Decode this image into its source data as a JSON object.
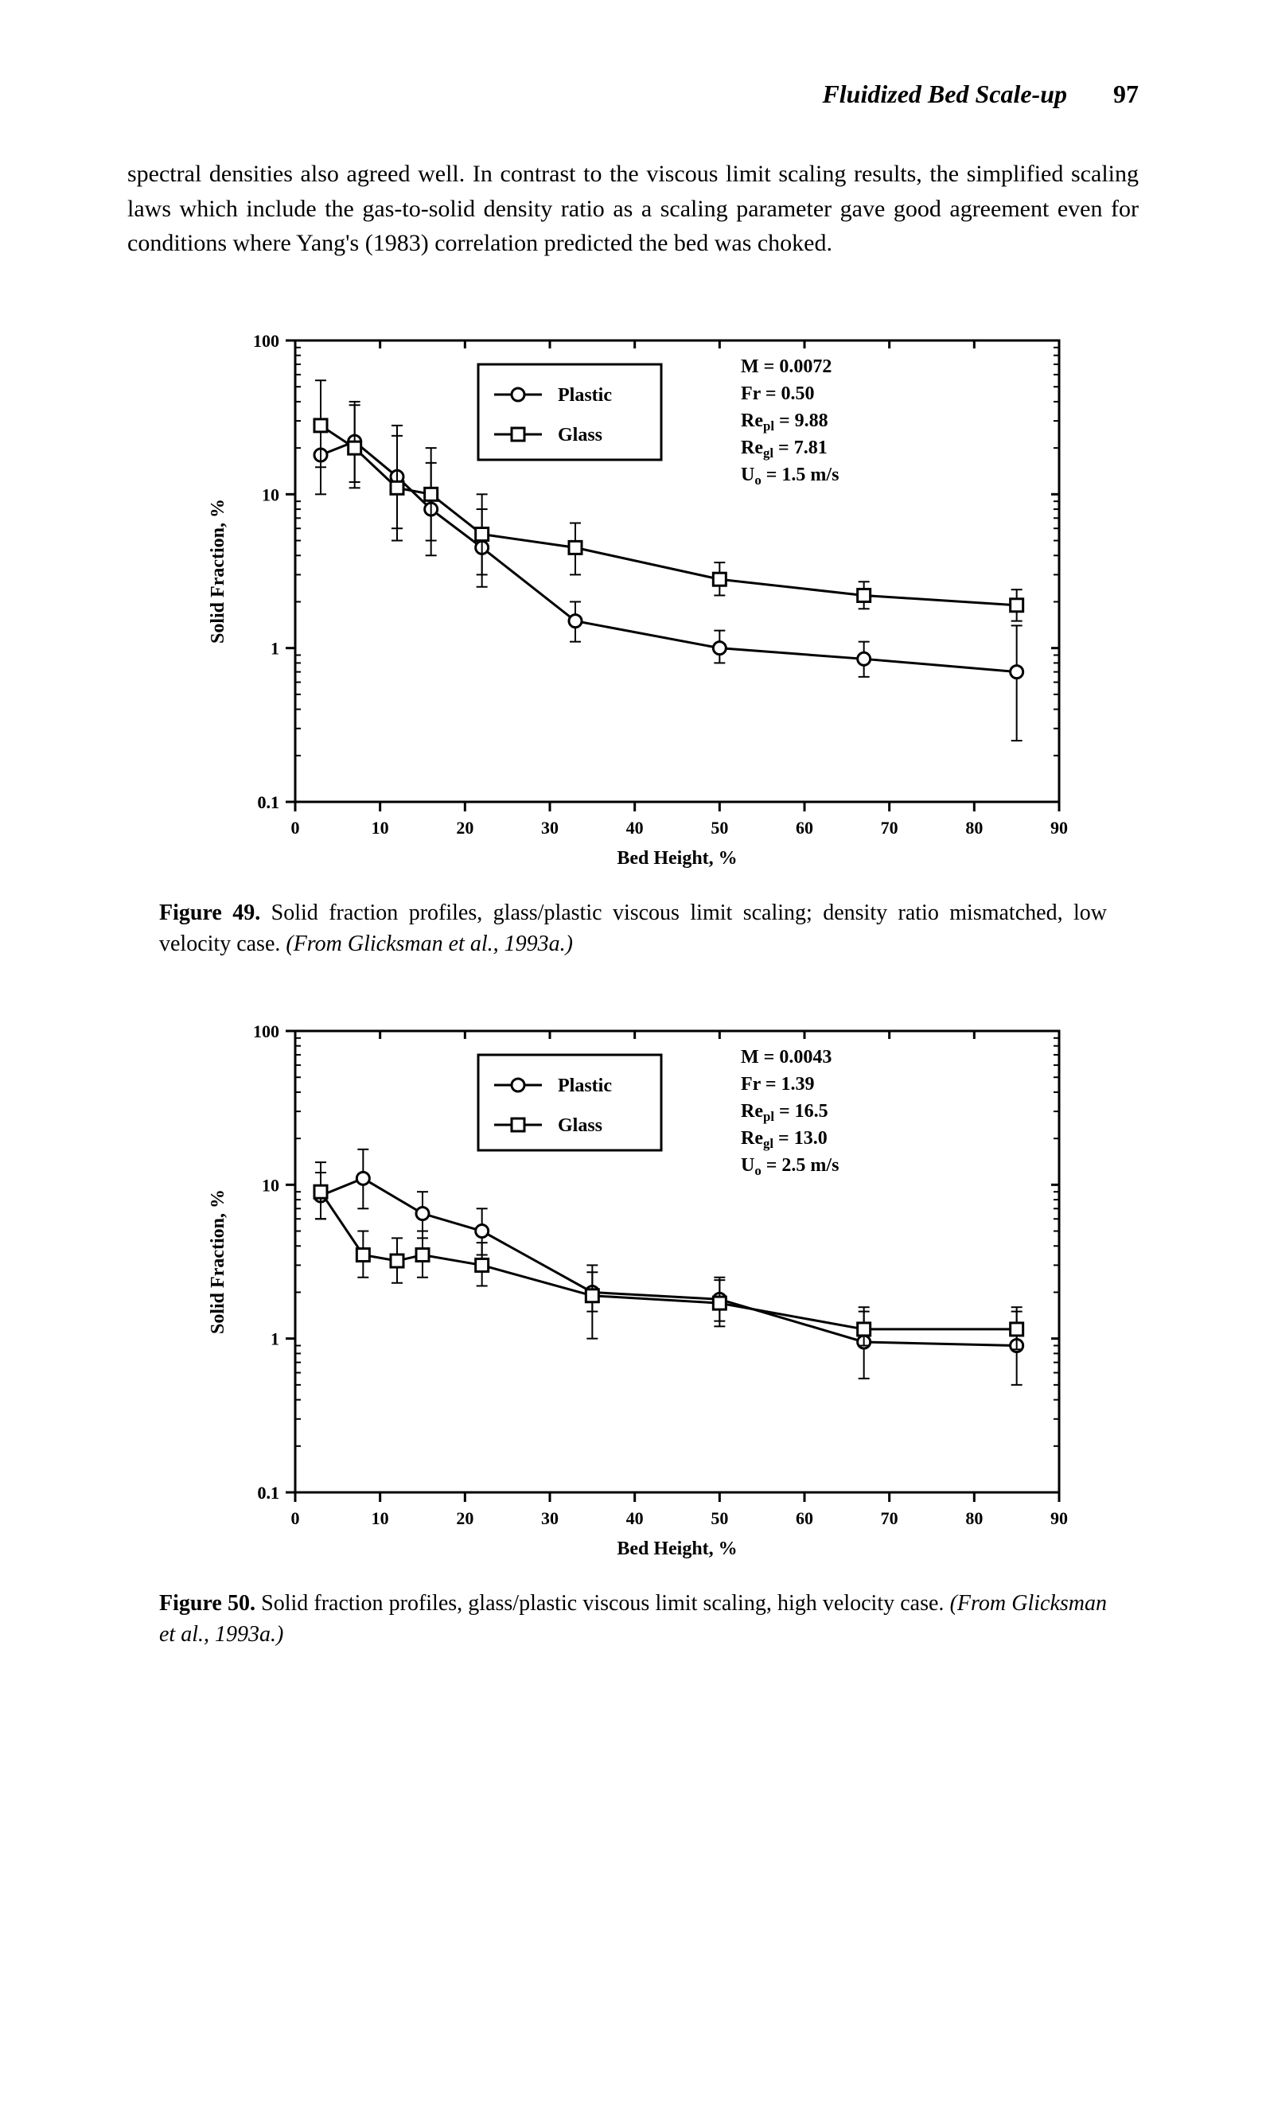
{
  "header": {
    "title": "Fluidized Bed Scale-up",
    "page": "97"
  },
  "body_paragraph": "spectral densities also agreed well. In contrast to the viscous limit scaling results, the simplified scaling laws which include the gas-to-solid density ratio as a scaling parameter gave good agreement even for conditions where Yang's (1983) correlation predicted the bed was choked.",
  "figure49": {
    "type": "scatter-line-log-y",
    "chart": {
      "xlabel": "Bed Height, %",
      "ylabel": "Solid Fraction, %",
      "xlim": [
        0,
        90
      ],
      "xticks": [
        0,
        10,
        20,
        30,
        40,
        50,
        60,
        70,
        80,
        90
      ],
      "ylim_log": [
        0.1,
        100
      ],
      "yticks_log": [
        0.1,
        1,
        10,
        100
      ],
      "grid_color": "#000000",
      "background_color": "#ffffff",
      "axis_line_width": 3,
      "series_line_width": 3,
      "marker_size": 8,
      "font_size_axis_label": 24,
      "font_size_tick": 22,
      "font_size_legend": 24,
      "font_size_params": 24
    },
    "legend": {
      "items": [
        {
          "label": "Plastic",
          "marker": "circle"
        },
        {
          "label": "Glass",
          "marker": "square"
        }
      ],
      "box_border": "#000000"
    },
    "params": {
      "lines": [
        "M = 0.0072",
        "Fr = 0.50",
        "Re_pl = 9.88",
        "Re_gl = 7.81",
        "U_o = 1.5 m/s"
      ]
    },
    "series_plastic": {
      "color": "#000000",
      "marker": "circle",
      "points": [
        {
          "x": 3,
          "y": 18,
          "err_lo": 10,
          "err_hi": 30
        },
        {
          "x": 7,
          "y": 22,
          "err_lo": 12,
          "err_hi": 40
        },
        {
          "x": 12,
          "y": 13,
          "err_lo": 6,
          "err_hi": 28
        },
        {
          "x": 16,
          "y": 8,
          "err_lo": 4,
          "err_hi": 16
        },
        {
          "x": 22,
          "y": 4.5,
          "err_lo": 2.5,
          "err_hi": 8
        },
        {
          "x": 33,
          "y": 1.5,
          "err_lo": 1.1,
          "err_hi": 2.0
        },
        {
          "x": 50,
          "y": 1.0,
          "err_lo": 0.8,
          "err_hi": 1.3
        },
        {
          "x": 67,
          "y": 0.85,
          "err_lo": 0.65,
          "err_hi": 1.1
        },
        {
          "x": 85,
          "y": 0.7,
          "err_lo": 0.25,
          "err_hi": 1.4
        }
      ]
    },
    "series_glass": {
      "color": "#000000",
      "marker": "square",
      "points": [
        {
          "x": 3,
          "y": 28,
          "err_lo": 15,
          "err_hi": 55
        },
        {
          "x": 7,
          "y": 20,
          "err_lo": 11,
          "err_hi": 38
        },
        {
          "x": 12,
          "y": 11,
          "err_lo": 5,
          "err_hi": 24
        },
        {
          "x": 16,
          "y": 10,
          "err_lo": 5,
          "err_hi": 20
        },
        {
          "x": 22,
          "y": 5.5,
          "err_lo": 3,
          "err_hi": 10
        },
        {
          "x": 33,
          "y": 4.5,
          "err_lo": 3,
          "err_hi": 6.5
        },
        {
          "x": 50,
          "y": 2.8,
          "err_lo": 2.2,
          "err_hi": 3.6
        },
        {
          "x": 67,
          "y": 2.2,
          "err_lo": 1.8,
          "err_hi": 2.7
        },
        {
          "x": 85,
          "y": 1.9,
          "err_lo": 1.5,
          "err_hi": 2.4
        }
      ]
    },
    "caption": {
      "label": "Figure 49.",
      "text": " Solid fraction profiles, glass/plastic viscous limit scaling; density ratio mismatched, low velocity case. ",
      "source": "(From Glicksman et al., 1993a.)"
    }
  },
  "figure50": {
    "type": "scatter-line-log-y",
    "chart": {
      "xlabel": "Bed Height, %",
      "ylabel": "Solid Fraction, %",
      "xlim": [
        0,
        90
      ],
      "xticks": [
        0,
        10,
        20,
        30,
        40,
        50,
        60,
        70,
        80,
        90
      ],
      "ylim_log": [
        0.1,
        100
      ],
      "yticks_log": [
        0.1,
        1,
        10,
        100
      ],
      "grid_color": "#000000",
      "background_color": "#ffffff",
      "axis_line_width": 3,
      "series_line_width": 3,
      "marker_size": 8,
      "font_size_axis_label": 24,
      "font_size_tick": 22,
      "font_size_legend": 24,
      "font_size_params": 24
    },
    "legend": {
      "items": [
        {
          "label": "Plastic",
          "marker": "circle"
        },
        {
          "label": "Glass",
          "marker": "square"
        }
      ],
      "box_border": "#000000"
    },
    "params": {
      "lines": [
        "M = 0.0043",
        "Fr = 1.39",
        "Re_pl = 16.5",
        "Re_gl = 13.0",
        "U_o = 2.5 m/s"
      ]
    },
    "series_plastic": {
      "color": "#000000",
      "marker": "circle",
      "points": [
        {
          "x": 3,
          "y": 8.5,
          "err_lo": 6,
          "err_hi": 12
        },
        {
          "x": 8,
          "y": 11,
          "err_lo": 7,
          "err_hi": 17
        },
        {
          "x": 15,
          "y": 6.5,
          "err_lo": 4.5,
          "err_hi": 9
        },
        {
          "x": 22,
          "y": 5.0,
          "err_lo": 3.5,
          "err_hi": 7
        },
        {
          "x": 35,
          "y": 2.0,
          "err_lo": 1.5,
          "err_hi": 2.7
        },
        {
          "x": 50,
          "y": 1.8,
          "err_lo": 1.3,
          "err_hi": 2.5
        },
        {
          "x": 67,
          "y": 0.95,
          "err_lo": 0.55,
          "err_hi": 1.6
        },
        {
          "x": 85,
          "y": 0.9,
          "err_lo": 0.5,
          "err_hi": 1.6
        }
      ]
    },
    "series_glass": {
      "color": "#000000",
      "marker": "square",
      "points": [
        {
          "x": 3,
          "y": 9,
          "err_lo": 6,
          "err_hi": 14
        },
        {
          "x": 8,
          "y": 3.5,
          "err_lo": 2.5,
          "err_hi": 5
        },
        {
          "x": 12,
          "y": 3.2,
          "err_lo": 2.3,
          "err_hi": 4.5
        },
        {
          "x": 15,
          "y": 3.5,
          "err_lo": 2.5,
          "err_hi": 5
        },
        {
          "x": 22,
          "y": 3.0,
          "err_lo": 2.2,
          "err_hi": 4.2
        },
        {
          "x": 35,
          "y": 1.9,
          "err_lo": 1.0,
          "err_hi": 3.0
        },
        {
          "x": 50,
          "y": 1.7,
          "err_lo": 1.2,
          "err_hi": 2.4
        },
        {
          "x": 67,
          "y": 1.15,
          "err_lo": 0.9,
          "err_hi": 1.5
        },
        {
          "x": 85,
          "y": 1.15,
          "err_lo": 0.85,
          "err_hi": 1.5
        }
      ]
    },
    "caption": {
      "label": "Figure 50.",
      "text": " Solid fraction profiles, glass/plastic viscous limit scaling, high velocity case. ",
      "source": "(From Glicksman et al., 1993a.)"
    }
  }
}
